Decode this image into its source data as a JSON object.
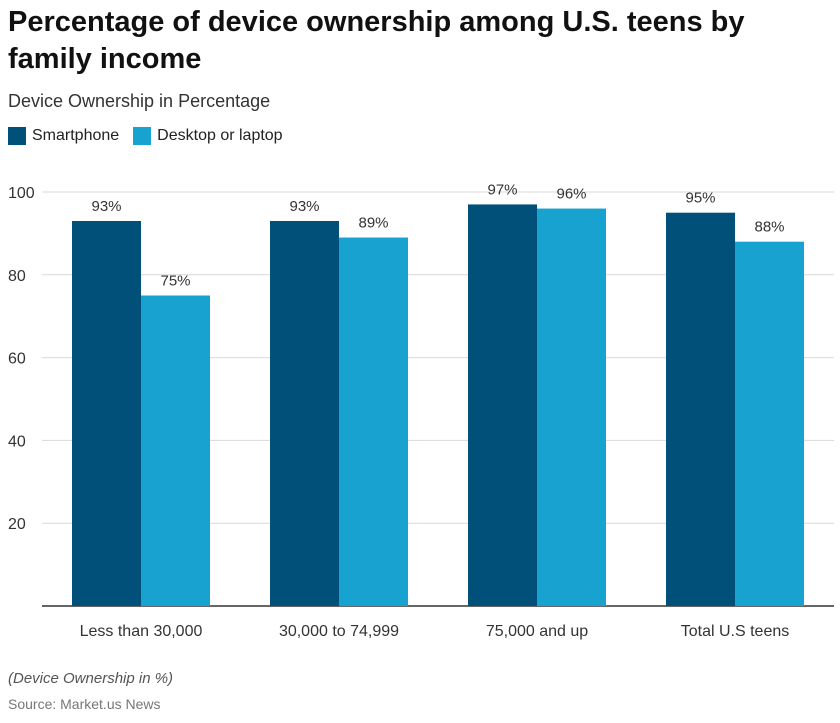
{
  "colors": {
    "smartphone": "#00507A",
    "desktop": "#18A2D0",
    "grid": "#d9d9d9",
    "axis": "#333333"
  },
  "footnote": "(Device Ownership in %)",
  "source": "Source: Market.us News",
  "chart_data": {
    "type": "bar",
    "title": "Percentage of device ownership among U.S. teens by family income",
    "subtitle": "Device Ownership in Percentage",
    "xlabel": "",
    "ylabel": "",
    "categories": [
      "Less than 30,000",
      "30,000 to 74,999",
      "75,000 and up",
      "Total U.S teens"
    ],
    "series": [
      {
        "name": "Smartphone",
        "values": [
          93,
          93,
          97,
          95
        ],
        "data_labels": [
          "93%",
          "93%",
          "97%",
          "95%"
        ]
      },
      {
        "name": "Desktop or laptop",
        "values": [
          75,
          89,
          96,
          88
        ],
        "data_labels": [
          "75%",
          "89%",
          "96%",
          "88%"
        ]
      }
    ],
    "ylim": [
      0,
      100
    ],
    "yticks": [
      20,
      40,
      60,
      80,
      100
    ],
    "grid": true,
    "legend": "top-left"
  }
}
